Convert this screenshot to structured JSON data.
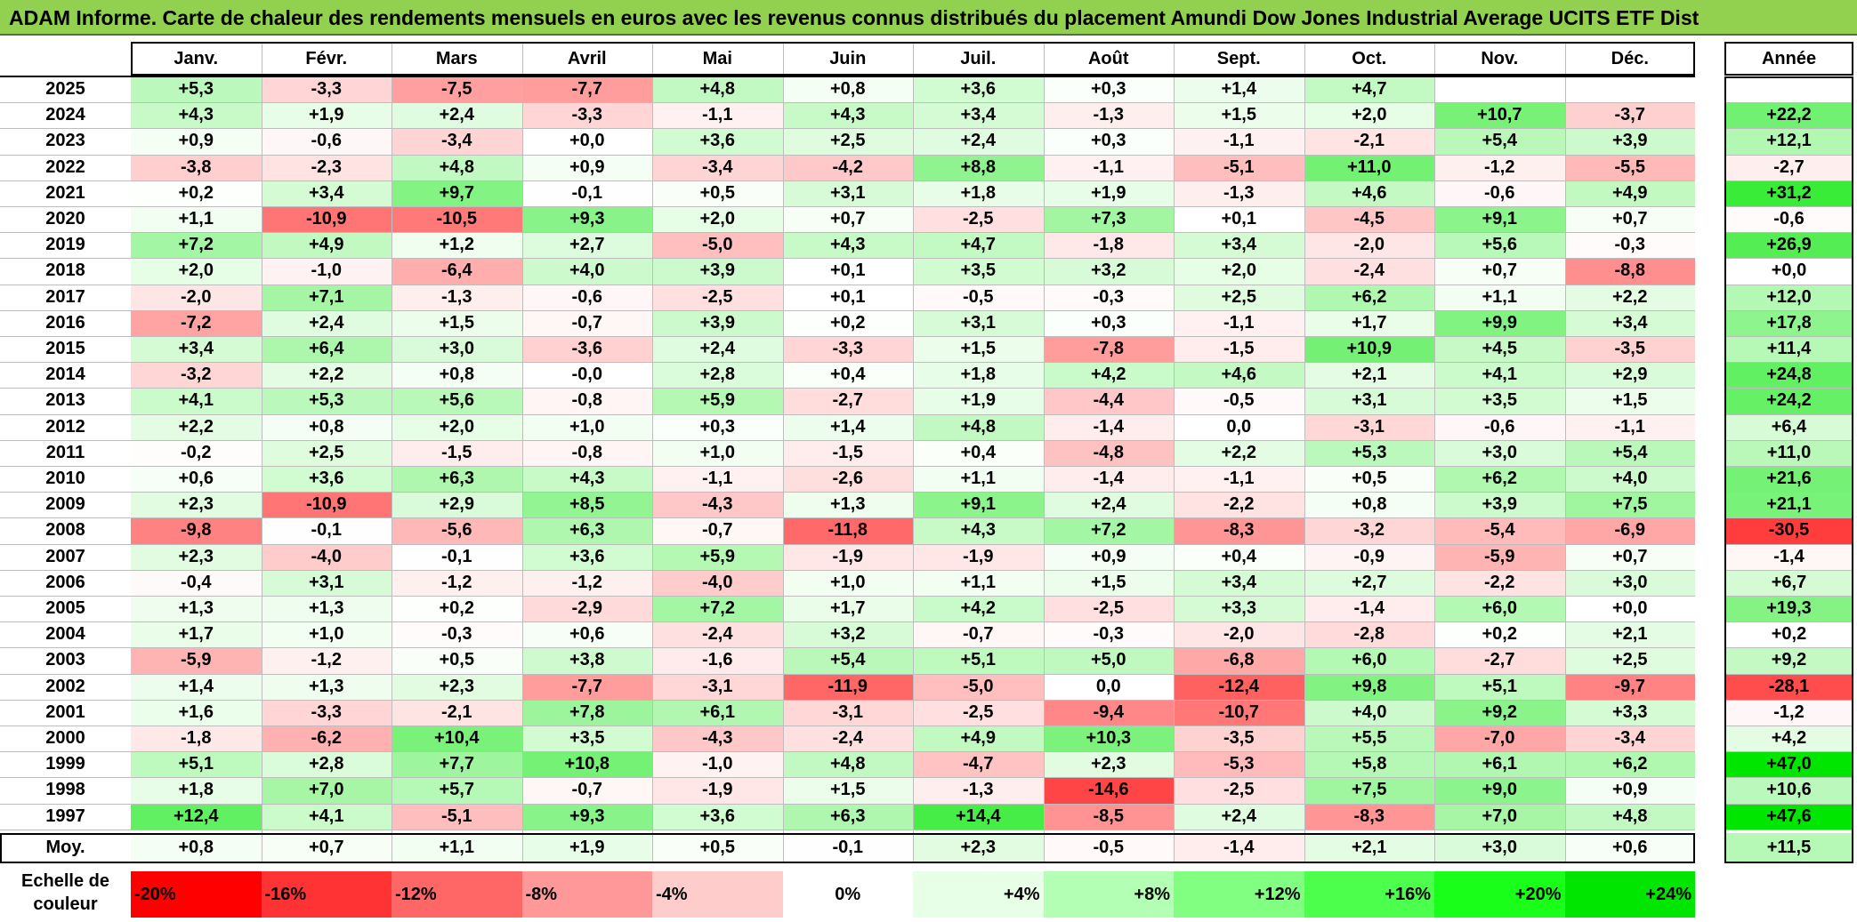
{
  "title": "ADAM Informe. Carte de chaleur des rendements mensuels en euros avec les revenus connus distribués du placement Amundi Dow Jones Industrial Average UCITS ETF Dist",
  "chart_data": {
    "type": "heatmap",
    "title": "ADAM Informe. Carte de chaleur des rendements mensuels en euros avec les revenus connus distribués du placement Amundi Dow Jones Industrial Average UCITS ETF Dist",
    "months": [
      "Janv.",
      "Févr.",
      "Mars",
      "Avril",
      "Mai",
      "Juin",
      "Juil.",
      "Août",
      "Sept.",
      "Oct.",
      "Nov.",
      "Déc."
    ],
    "year_header": "Année",
    "rows": [
      {
        "year": "2025",
        "values": [
          "+5,3",
          "-3,3",
          "-7,5",
          "-7,7",
          "+4,8",
          "+0,8",
          "+3,6",
          "+0,3",
          "+1,4",
          "+4,7",
          "",
          ""
        ],
        "annual": ""
      },
      {
        "year": "2024",
        "values": [
          "+4,3",
          "+1,9",
          "+2,4",
          "-3,3",
          "-1,1",
          "+4,3",
          "+3,4",
          "-1,3",
          "+1,5",
          "+2,0",
          "+10,7",
          "-3,7"
        ],
        "annual": "+22,2"
      },
      {
        "year": "2023",
        "values": [
          "+0,9",
          "-0,6",
          "-3,4",
          "+0,0",
          "+3,6",
          "+2,5",
          "+2,4",
          "+0,3",
          "-1,1",
          "-2,1",
          "+5,4",
          "+3,9"
        ],
        "annual": "+12,1"
      },
      {
        "year": "2022",
        "values": [
          "-3,8",
          "-2,3",
          "+4,8",
          "+0,9",
          "-3,4",
          "-4,2",
          "+8,8",
          "-1,1",
          "-5,1",
          "+11,0",
          "-1,2",
          "-5,5"
        ],
        "annual": "-2,7"
      },
      {
        "year": "2021",
        "values": [
          "+0,2",
          "+3,4",
          "+9,7",
          "-0,1",
          "+0,5",
          "+3,1",
          "+1,8",
          "+1,9",
          "-1,3",
          "+4,6",
          "-0,6",
          "+4,9"
        ],
        "annual": "+31,2"
      },
      {
        "year": "2020",
        "values": [
          "+1,1",
          "-10,9",
          "-10,5",
          "+9,3",
          "+2,0",
          "+0,7",
          "-2,5",
          "+7,3",
          "+0,1",
          "-4,5",
          "+9,1",
          "+0,7"
        ],
        "annual": "-0,6"
      },
      {
        "year": "2019",
        "values": [
          "+7,2",
          "+4,9",
          "+1,2",
          "+2,7",
          "-5,0",
          "+4,3",
          "+4,7",
          "-1,8",
          "+3,4",
          "-2,0",
          "+5,6",
          "-0,3"
        ],
        "annual": "+26,9"
      },
      {
        "year": "2018",
        "values": [
          "+2,0",
          "-1,0",
          "-6,4",
          "+4,0",
          "+3,9",
          "+0,1",
          "+3,5",
          "+3,2",
          "+2,0",
          "-2,4",
          "+0,7",
          "-8,8"
        ],
        "annual": "+0,0"
      },
      {
        "year": "2017",
        "values": [
          "-2,0",
          "+7,1",
          "-1,3",
          "-0,6",
          "-2,5",
          "+0,1",
          "-0,5",
          "-0,3",
          "+2,5",
          "+6,2",
          "+1,1",
          "+2,2"
        ],
        "annual": "+12,0"
      },
      {
        "year": "2016",
        "values": [
          "-7,2",
          "+2,4",
          "+1,5",
          "-0,7",
          "+3,9",
          "+0,2",
          "+3,1",
          "+0,3",
          "-1,1",
          "+1,7",
          "+9,9",
          "+3,4"
        ],
        "annual": "+17,8"
      },
      {
        "year": "2015",
        "values": [
          "+3,4",
          "+6,4",
          "+3,0",
          "-3,6",
          "+2,4",
          "-3,3",
          "+1,5",
          "-7,8",
          "-1,5",
          "+10,9",
          "+4,5",
          "-3,5"
        ],
        "annual": "+11,4"
      },
      {
        "year": "2014",
        "values": [
          "-3,2",
          "+2,2",
          "+0,8",
          "-0,0",
          "+2,8",
          "+0,4",
          "+1,8",
          "+4,2",
          "+4,6",
          "+2,1",
          "+4,1",
          "+2,9"
        ],
        "annual": "+24,8"
      },
      {
        "year": "2013",
        "values": [
          "+4,1",
          "+5,3",
          "+5,6",
          "-0,8",
          "+5,9",
          "-2,7",
          "+1,9",
          "-4,4",
          "-0,5",
          "+3,1",
          "+3,5",
          "+1,5"
        ],
        "annual": "+24,2"
      },
      {
        "year": "2012",
        "values": [
          "+2,2",
          "+0,8",
          "+2,0",
          "+1,0",
          "+0,3",
          "+1,4",
          "+4,8",
          "-1,4",
          "0,0",
          "-3,1",
          "-0,6",
          "-1,1"
        ],
        "annual": "+6,4"
      },
      {
        "year": "2011",
        "values": [
          "-0,2",
          "+2,5",
          "-1,5",
          "-0,8",
          "+1,0",
          "-1,5",
          "+0,4",
          "-4,8",
          "+2,2",
          "+5,3",
          "+3,0",
          "+5,4"
        ],
        "annual": "+11,0"
      },
      {
        "year": "2010",
        "values": [
          "+0,6",
          "+3,6",
          "+6,3",
          "+4,3",
          "-1,1",
          "-2,6",
          "+1,1",
          "-1,4",
          "-1,1",
          "+0,5",
          "+6,2",
          "+4,0"
        ],
        "annual": "+21,6"
      },
      {
        "year": "2009",
        "values": [
          "+2,3",
          "-10,9",
          "+2,9",
          "+8,5",
          "-4,3",
          "+1,3",
          "+9,1",
          "+2,4",
          "-2,2",
          "+0,8",
          "+3,9",
          "+7,5"
        ],
        "annual": "+21,1"
      },
      {
        "year": "2008",
        "values": [
          "-9,8",
          "-0,1",
          "-5,6",
          "+6,3",
          "-0,7",
          "-11,8",
          "+4,3",
          "+7,2",
          "-8,3",
          "-3,2",
          "-5,4",
          "-6,9"
        ],
        "annual": "-30,5"
      },
      {
        "year": "2007",
        "values": [
          "+2,3",
          "-4,0",
          "-0,1",
          "+3,6",
          "+5,9",
          "-1,9",
          "-1,9",
          "+0,9",
          "+0,4",
          "-0,9",
          "-5,9",
          "+0,7"
        ],
        "annual": "-1,4"
      },
      {
        "year": "2006",
        "values": [
          "-0,4",
          "+3,1",
          "-1,2",
          "-1,2",
          "-4,0",
          "+1,0",
          "+1,1",
          "+1,5",
          "+3,4",
          "+2,7",
          "-2,2",
          "+3,0"
        ],
        "annual": "+6,7"
      },
      {
        "year": "2005",
        "values": [
          "+1,3",
          "+1,3",
          "+0,2",
          "-2,9",
          "+7,2",
          "+1,7",
          "+4,2",
          "-2,5",
          "+3,3",
          "-1,4",
          "+6,0",
          "+0,0"
        ],
        "annual": "+19,3"
      },
      {
        "year": "2004",
        "values": [
          "+1,7",
          "+1,0",
          "-0,3",
          "+0,6",
          "-2,4",
          "+3,2",
          "-0,7",
          "-0,3",
          "-2,0",
          "-2,8",
          "+0,2",
          "+2,1"
        ],
        "annual": "+0,2"
      },
      {
        "year": "2003",
        "values": [
          "-5,9",
          "-1,2",
          "+0,5",
          "+3,8",
          "-1,6",
          "+5,4",
          "+5,1",
          "+5,0",
          "-6,8",
          "+6,0",
          "-2,7",
          "+2,5"
        ],
        "annual": "+9,2"
      },
      {
        "year": "2002",
        "values": [
          "+1,4",
          "+1,3",
          "+2,3",
          "-7,7",
          "-3,1",
          "-11,9",
          "-5,0",
          "0,0",
          "-12,4",
          "+9,8",
          "+5,1",
          "-9,7"
        ],
        "annual": "-28,1"
      },
      {
        "year": "2001",
        "values": [
          "+1,6",
          "-3,3",
          "-2,1",
          "+7,8",
          "+6,1",
          "-3,1",
          "-2,5",
          "-9,4",
          "-10,7",
          "+4,0",
          "+9,2",
          "+3,3"
        ],
        "annual": "-1,2"
      },
      {
        "year": "2000",
        "values": [
          "-1,8",
          "-6,2",
          "+10,4",
          "+3,5",
          "-4,3",
          "-2,4",
          "+4,9",
          "+10,3",
          "-3,5",
          "+5,5",
          "-7,0",
          "-3,4"
        ],
        "annual": "+4,2"
      },
      {
        "year": "1999",
        "values": [
          "+5,1",
          "+2,8",
          "+7,7",
          "+10,8",
          "-1,0",
          "+4,8",
          "-4,7",
          "+2,3",
          "-5,3",
          "+5,8",
          "+6,1",
          "+6,2"
        ],
        "annual": "+47,0"
      },
      {
        "year": "1998",
        "values": [
          "+1,8",
          "+7,0",
          "+5,7",
          "-0,7",
          "-1,9",
          "+1,5",
          "-1,3",
          "-14,6",
          "-2,5",
          "+7,5",
          "+9,0",
          "+0,9"
        ],
        "annual": "+10,6"
      },
      {
        "year": "1997",
        "values": [
          "+12,4",
          "+4,1",
          "-5,1",
          "+9,3",
          "+3,6",
          "+6,3",
          "+14,4",
          "-8,5",
          "+2,4",
          "-8,3",
          "+7,0",
          "+4,8"
        ],
        "annual": "+47,6"
      }
    ],
    "average": {
      "label": "Moy.",
      "values": [
        "+0,8",
        "+0,7",
        "+1,1",
        "+1,9",
        "+0,5",
        "-0,1",
        "+2,3",
        "-0,5",
        "-1,4",
        "+2,1",
        "+3,0",
        "+0,6"
      ],
      "annual": "+11,5"
    },
    "scale": {
      "label_line1": "Echelle de",
      "label_line2": "couleur",
      "steps": [
        {
          "text": "-20%",
          "value": -20,
          "color": "#FF0000",
          "align": "left"
        },
        {
          "text": "-16%",
          "value": -16,
          "color": "#FF3333",
          "align": "left"
        },
        {
          "text": "-12%",
          "value": -12,
          "color": "#FF6666",
          "align": "left"
        },
        {
          "text": "-8%",
          "value": -8,
          "color": "#FF9999",
          "align": "left"
        },
        {
          "text": "-4%",
          "value": -4,
          "color": "#FFCCCC",
          "align": "left"
        },
        {
          "text": "0%",
          "value": 0,
          "color": "#FFFFFF",
          "align": "center"
        },
        {
          "text": "+4%",
          "value": 4,
          "color": "#E6FFE6",
          "align": "right"
        },
        {
          "text": "+8%",
          "value": 8,
          "color": "#B3FFB3",
          "align": "right"
        },
        {
          "text": "+12%",
          "value": 12,
          "color": "#80FF80",
          "align": "right"
        },
        {
          "text": "+16%",
          "value": 16,
          "color": "#4DFF4D",
          "align": "right"
        },
        {
          "text": "+20%",
          "value": 20,
          "color": "#1AFF1A",
          "align": "right"
        },
        {
          "text": "+24%",
          "value": 24,
          "color": "#00E600",
          "align": "right"
        }
      ]
    }
  }
}
